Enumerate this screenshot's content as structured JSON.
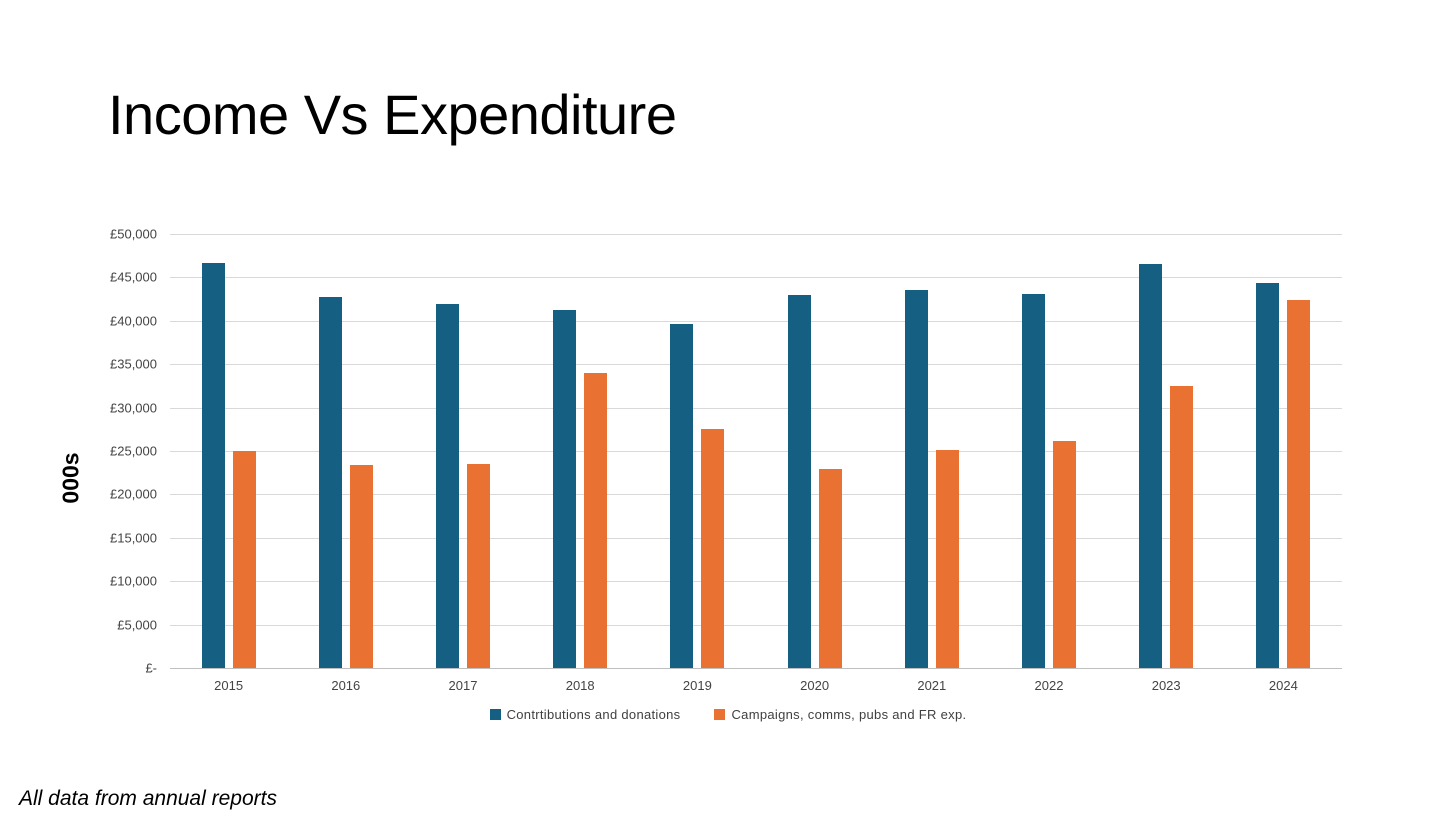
{
  "title": "Income Vs Expenditure",
  "footnote": "All data from annual reports",
  "chart_data": {
    "type": "bar",
    "title": "Income Vs Expenditure",
    "categories": [
      "2015",
      "2016",
      "2017",
      "2018",
      "2019",
      "2020",
      "2021",
      "2022",
      "2023",
      "2024"
    ],
    "series": [
      {
        "name": "Contrtibutions and donations",
        "color": "#156082",
        "values": [
          46700,
          42800,
          41900,
          41300,
          39600,
          43000,
          43500,
          43100,
          46600,
          44300
        ]
      },
      {
        "name": "Campaigns, comms, pubs and FR exp.",
        "color": "#E97132",
        "values": [
          25000,
          23400,
          23500,
          34000,
          27500,
          22900,
          25100,
          26100,
          32500,
          42400
        ]
      }
    ],
    "xlabel": "",
    "ylabel": "000s",
    "ylim": [
      0,
      50000
    ],
    "ytick_step": 5000,
    "ytick_labels": [
      "£-",
      "£5,000",
      "£10,000",
      "£15,000",
      "£20,000",
      "£25,000",
      "£30,000",
      "£35,000",
      "£40,000",
      "£45,000",
      "£50,000"
    ],
    "grid": true,
    "legend_position": "bottom",
    "gridline_color": "#d9d9d9",
    "axis_line_color": "#bfbfbf",
    "tick_text_color": "#444444"
  }
}
